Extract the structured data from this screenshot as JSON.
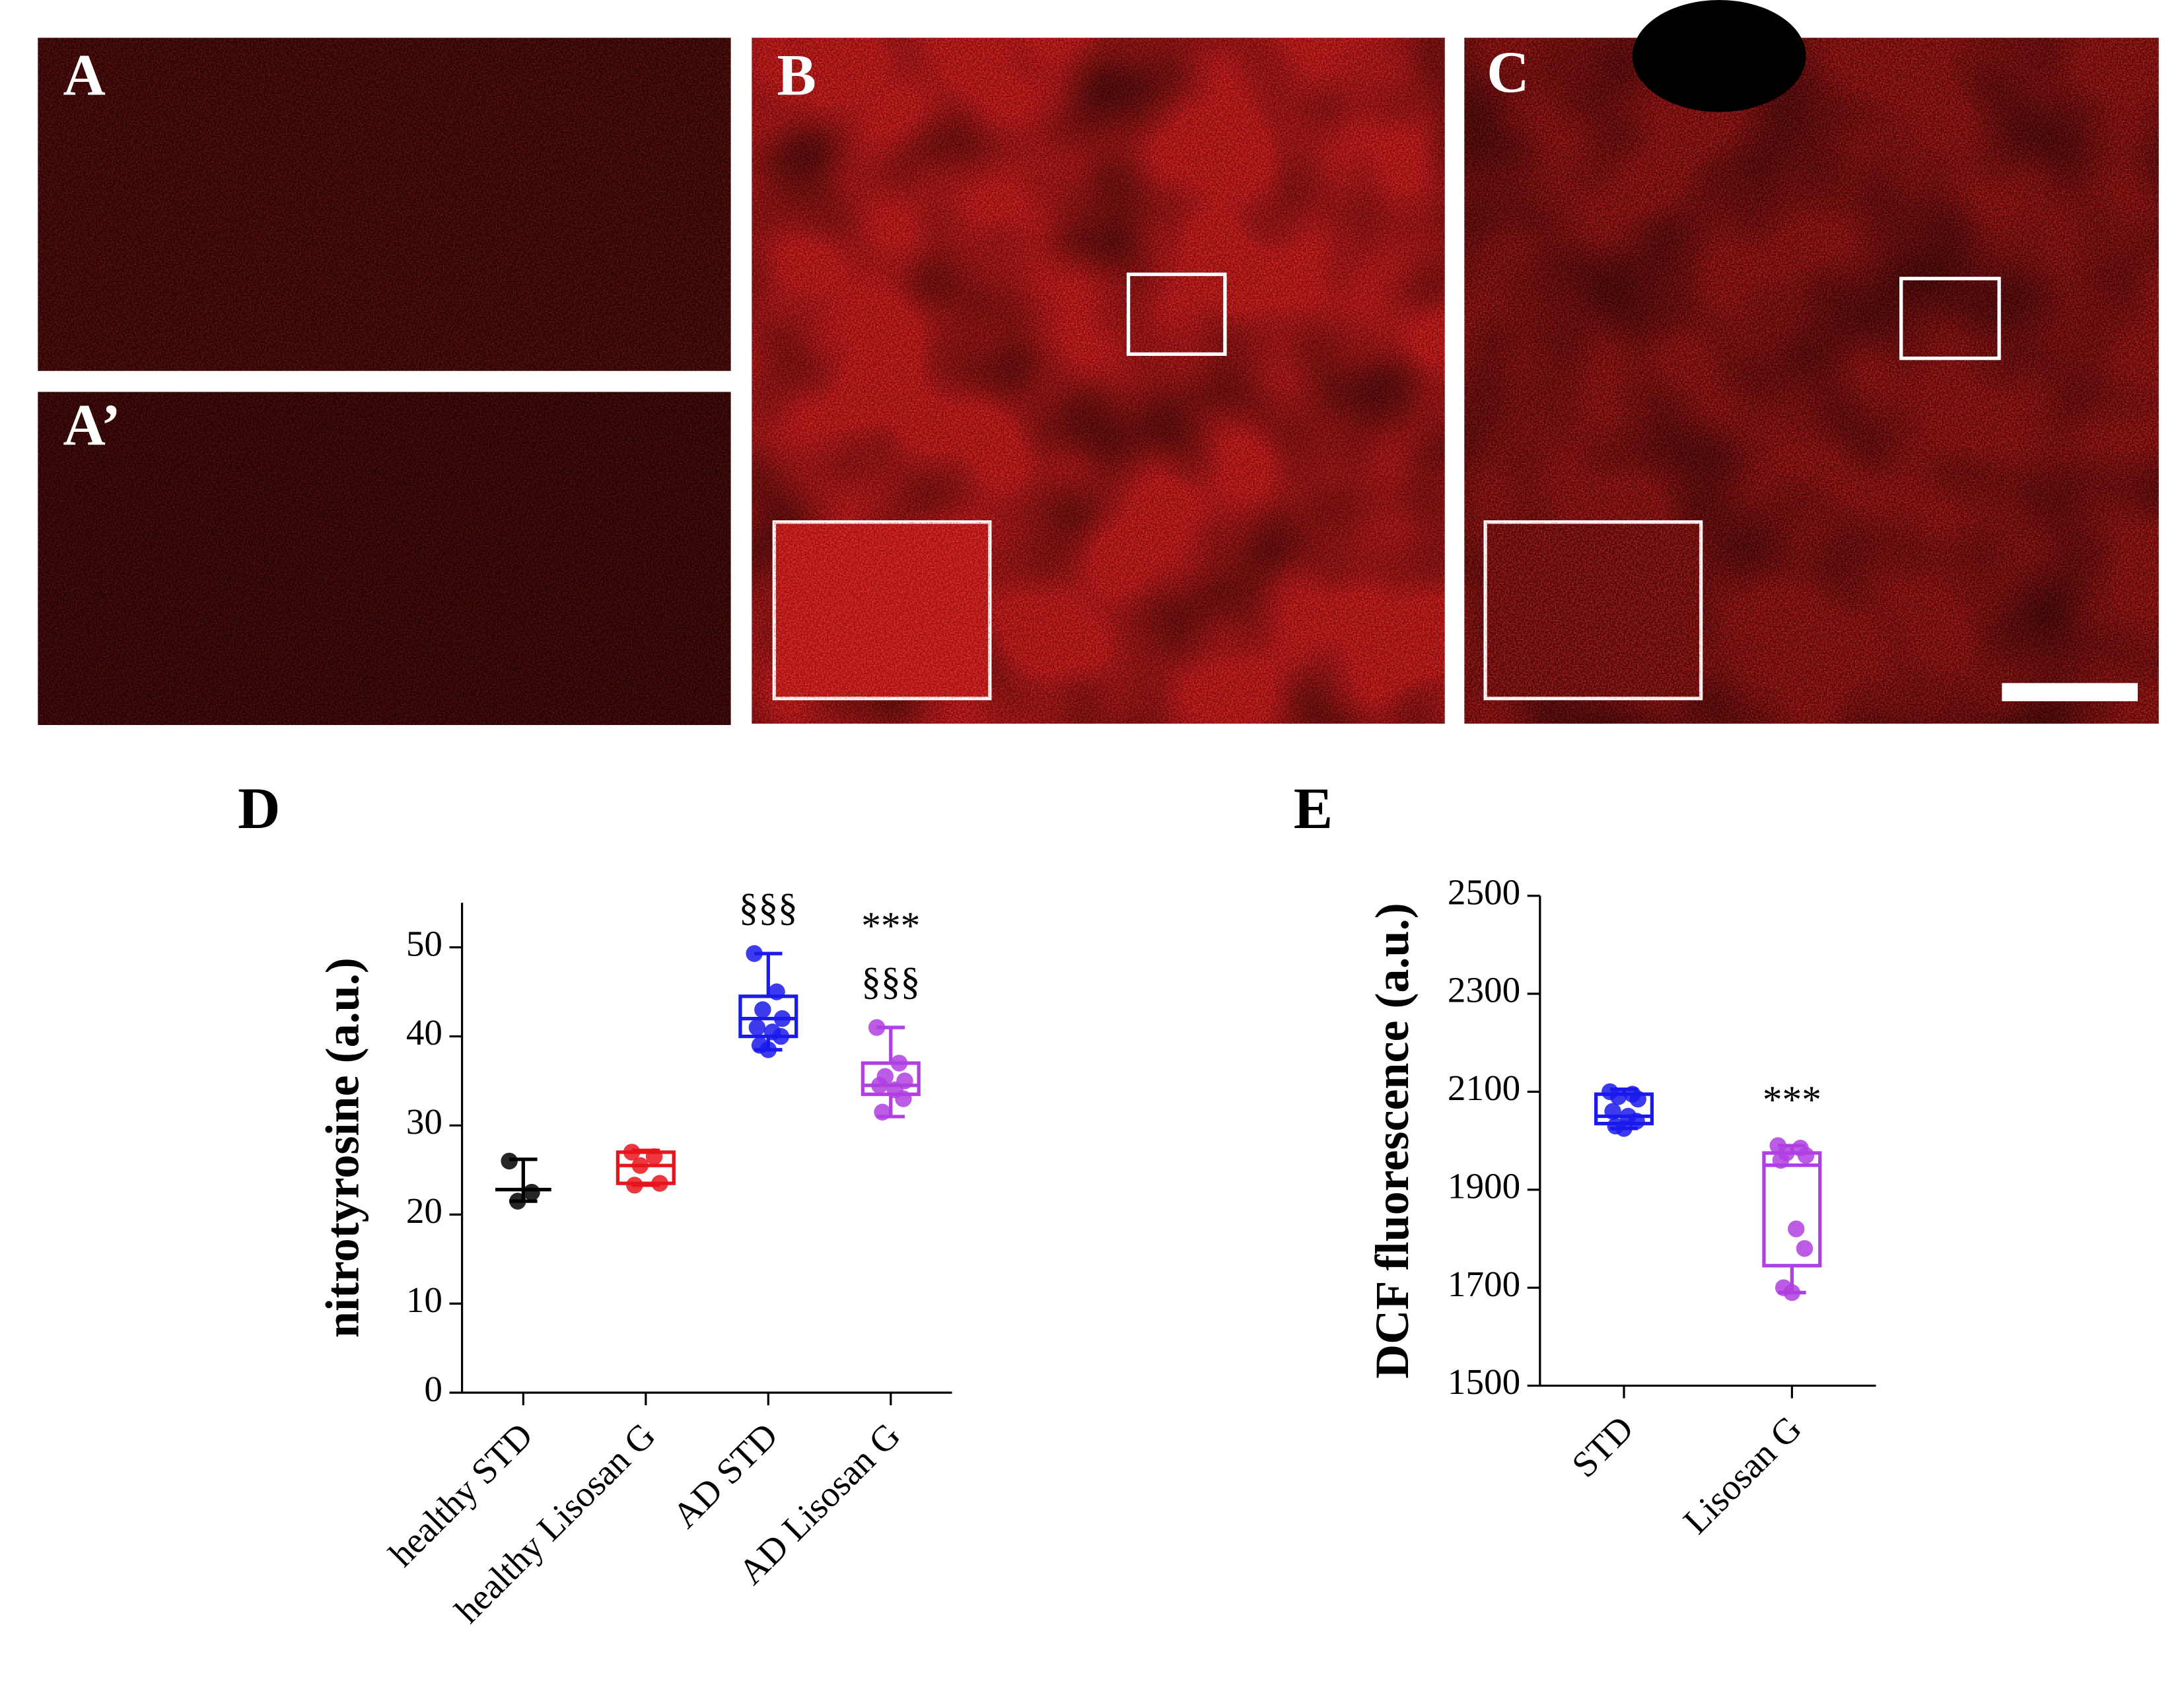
{
  "images": [
    {
      "label": "A"
    },
    {
      "label": "A’"
    },
    {
      "label": "B"
    },
    {
      "label": "C"
    }
  ],
  "chart_data": [
    {
      "type": "box",
      "title": "D",
      "ylabel": "nitrotyrosine (a.u.)",
      "categories": [
        "healthy STD",
        "healthy Lisosan G",
        "AD STD",
        "AD Lisosan G"
      ],
      "ylim": [
        0,
        55
      ],
      "yticks": [
        0,
        10,
        20,
        30,
        40,
        50
      ],
      "groups": [
        {
          "color": "#000000",
          "min": 21.5,
          "q1": 22.8,
          "median": 22.8,
          "q3": 22.8,
          "max": 26.2,
          "points": [
            26,
            22.5,
            21.5
          ]
        },
        {
          "color": "#e8141c",
          "min": 23.3,
          "q1": 23.5,
          "median": 25.5,
          "q3": 27,
          "max": 27.2,
          "points": [
            27,
            26.5,
            25.5,
            23.5,
            23.3
          ]
        },
        {
          "color": "#1a1aeb",
          "min": 38.5,
          "q1": 40,
          "median": 42,
          "q3": 44.5,
          "max": 49.3,
          "points": [
            49.3,
            45,
            43,
            42,
            41,
            40.5,
            40,
            39,
            38.5
          ]
        },
        {
          "color": "#b040e0",
          "min": 31,
          "q1": 33.5,
          "median": 34.5,
          "q3": 37,
          "max": 41,
          "points": [
            41,
            37,
            35.5,
            35,
            34.5,
            34,
            33,
            31.5
          ]
        }
      ],
      "annotations": [
        [],
        [],
        [
          "§§§"
        ],
        [
          "***",
          "§§§"
        ]
      ]
    },
    {
      "type": "box",
      "title": "E",
      "ylabel": "DCF fluorescence (a.u.)",
      "categories": [
        "STD",
        "Lisosan G"
      ],
      "ylim": [
        1500,
        2500
      ],
      "yticks": [
        1500,
        1700,
        1900,
        2100,
        2300,
        2500
      ],
      "groups": [
        {
          "color": "#1a1aeb",
          "min": 2025,
          "q1": 2035,
          "median": 2050,
          "q3": 2095,
          "max": 2105,
          "points": [
            2100,
            2095,
            2090,
            2085,
            2060,
            2050,
            2040,
            2030,
            2025
          ]
        },
        {
          "color": "#b040e0",
          "min": 1690,
          "q1": 1745,
          "median": 1950,
          "q3": 1975,
          "max": 1990,
          "points": [
            1990,
            1985,
            1975,
            1970,
            1960,
            1820,
            1780,
            1700,
            1690
          ]
        }
      ],
      "annotations": [
        [],
        [
          "***"
        ]
      ]
    }
  ]
}
